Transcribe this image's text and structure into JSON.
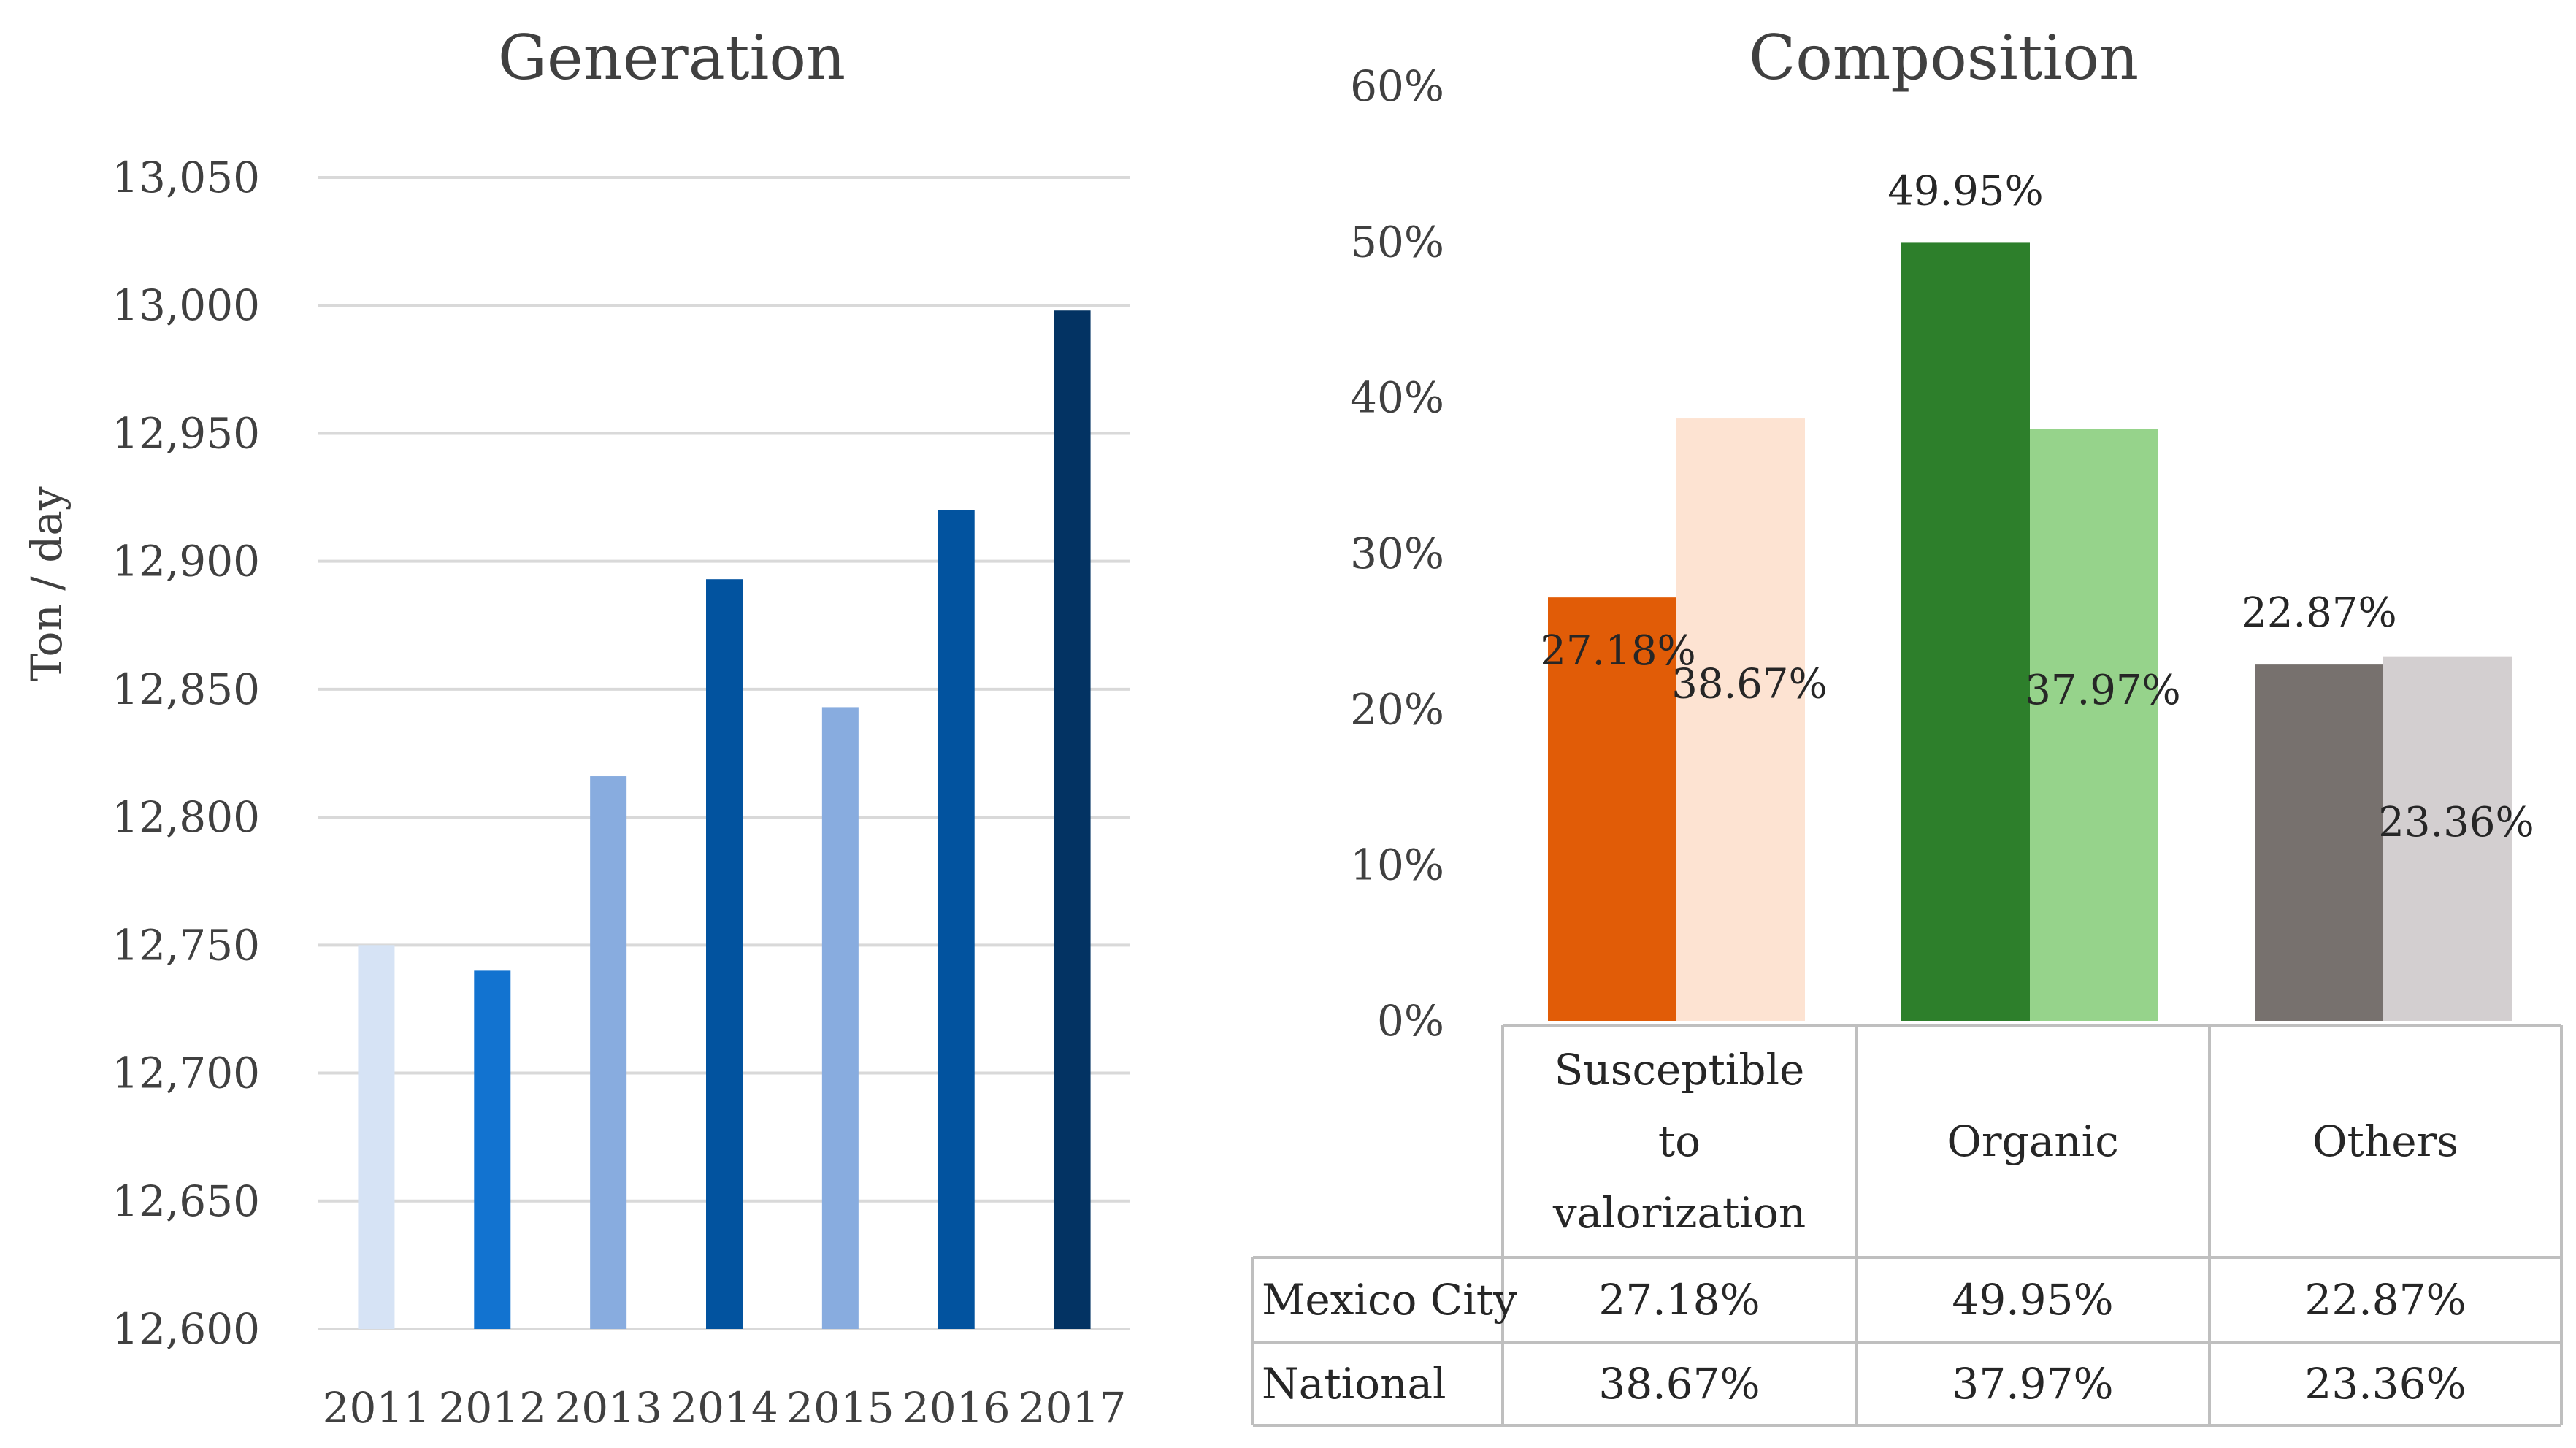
{
  "chart_data": [
    {
      "type": "bar",
      "title": "Generation",
      "ylabel": "Ton / day",
      "xlabel": "",
      "ylim": [
        12600,
        13050
      ],
      "yticks": [
        12600,
        12650,
        12700,
        12750,
        12800,
        12850,
        12900,
        12950,
        13000,
        13050
      ],
      "ytick_labels": [
        "12,600",
        "12,650",
        "12,700",
        "12,750",
        "12,800",
        "12,850",
        "12,900",
        "12,950",
        "13,000",
        "13,050"
      ],
      "grid": true,
      "categories": [
        "2011",
        "2012",
        "2013",
        "2014",
        "2015",
        "2016",
        "2017"
      ],
      "values": [
        12750,
        12740,
        12816,
        12893,
        12843,
        12920,
        12998
      ],
      "colors": [
        "#d6e3f5",
        "#1273d0",
        "#88acdf",
        "#02539f",
        "#88acdf",
        "#02539f",
        "#033363"
      ]
    },
    {
      "type": "bar",
      "title": "Composition",
      "ylim": [
        0,
        60
      ],
      "yticks": [
        0,
        10,
        20,
        30,
        40,
        50,
        60
      ],
      "ytick_labels": [
        "0%",
        "10%",
        "20%",
        "30%",
        "40%",
        "50%",
        "60%"
      ],
      "grid": false,
      "categories": [
        "Susceptible to valorization",
        "Organic",
        "Others"
      ],
      "category_lines": [
        [
          "Susceptible",
          "to",
          "valorization"
        ],
        [
          "Organic"
        ],
        [
          "Others"
        ]
      ],
      "series": [
        {
          "name": "Mexico City",
          "values": [
            27.18,
            49.95,
            22.87
          ],
          "labels": [
            "27.18%",
            "49.95%",
            "22.87%"
          ],
          "colors": [
            "#e15c07",
            "#2d7f2b",
            "#77716e"
          ]
        },
        {
          "name": "National",
          "values": [
            38.67,
            37.97,
            23.36
          ],
          "labels": [
            "38.67%",
            "37.97%",
            "23.36%"
          ],
          "colors": [
            "#fde3d2",
            "#96d38b",
            "#d3cfd0"
          ]
        }
      ],
      "legend": "data table below chart"
    }
  ]
}
